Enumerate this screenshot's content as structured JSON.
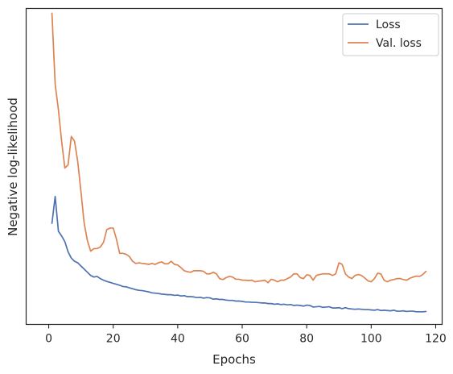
{
  "chart_data": {
    "type": "line",
    "xlabel": "Epochs",
    "ylabel": "Negative log-likelihood",
    "xlim": [
      -7,
      122
    ],
    "ylim": [
      0,
      1
    ],
    "xticks": [
      0,
      20,
      40,
      60,
      80,
      100,
      120
    ],
    "y_tick_labels_shown": false,
    "grid": false,
    "legend": {
      "placement": "top-right"
    },
    "x": [
      1,
      2,
      3,
      4,
      5,
      6,
      7,
      8,
      9,
      10,
      11,
      12,
      13,
      14,
      15,
      16,
      17,
      18,
      19,
      20,
      21,
      22,
      23,
      24,
      25,
      26,
      27,
      28,
      29,
      30,
      31,
      32,
      33,
      34,
      35,
      36,
      37,
      38,
      39,
      40,
      41,
      42,
      43,
      44,
      45,
      46,
      47,
      48,
      49,
      50,
      51,
      52,
      53,
      54,
      55,
      56,
      57,
      58,
      59,
      60,
      61,
      62,
      63,
      64,
      65,
      66,
      67,
      68,
      69,
      70,
      71,
      72,
      73,
      74,
      75,
      76,
      77,
      78,
      79,
      80,
      81,
      82,
      83,
      84,
      85,
      86,
      87,
      88,
      89,
      90,
      91,
      92,
      93,
      94,
      95,
      96,
      97,
      98,
      99,
      100,
      101,
      102,
      103,
      104,
      105,
      106,
      107,
      108,
      109,
      110,
      111,
      112,
      113,
      114,
      115,
      116,
      117
    ],
    "series": [
      {
        "name": "Loss",
        "color": "#4c72b0",
        "values": [
          0.32,
          0.405,
          0.295,
          0.28,
          0.262,
          0.23,
          0.21,
          0.2,
          0.195,
          0.185,
          0.175,
          0.165,
          0.155,
          0.15,
          0.152,
          0.145,
          0.14,
          0.136,
          0.133,
          0.13,
          0.127,
          0.124,
          0.12,
          0.119,
          0.116,
          0.113,
          0.11,
          0.108,
          0.107,
          0.105,
          0.103,
          0.1,
          0.099,
          0.098,
          0.096,
          0.095,
          0.094,
          0.094,
          0.092,
          0.093,
          0.09,
          0.091,
          0.088,
          0.088,
          0.087,
          0.085,
          0.086,
          0.083,
          0.085,
          0.084,
          0.08,
          0.081,
          0.079,
          0.079,
          0.077,
          0.076,
          0.076,
          0.074,
          0.074,
          0.073,
          0.071,
          0.071,
          0.07,
          0.07,
          0.069,
          0.068,
          0.068,
          0.066,
          0.066,
          0.064,
          0.065,
          0.063,
          0.064,
          0.062,
          0.063,
          0.06,
          0.061,
          0.06,
          0.058,
          0.061,
          0.06,
          0.055,
          0.056,
          0.057,
          0.054,
          0.055,
          0.056,
          0.052,
          0.052,
          0.053,
          0.05,
          0.053,
          0.05,
          0.049,
          0.048,
          0.049,
          0.048,
          0.047,
          0.047,
          0.046,
          0.045,
          0.047,
          0.044,
          0.045,
          0.044,
          0.043,
          0.045,
          0.042,
          0.042,
          0.043,
          0.041,
          0.042,
          0.042,
          0.04,
          0.04,
          0.04,
          0.041
        ]
      },
      {
        "name": "Val. loss",
        "color": "#dd8452",
        "values": [
          0.985,
          0.76,
          0.68,
          0.58,
          0.495,
          0.505,
          0.595,
          0.58,
          0.515,
          0.42,
          0.32,
          0.265,
          0.232,
          0.24,
          0.24,
          0.245,
          0.26,
          0.3,
          0.305,
          0.305,
          0.27,
          0.225,
          0.225,
          0.222,
          0.215,
          0.2,
          0.193,
          0.195,
          0.193,
          0.192,
          0.19,
          0.193,
          0.19,
          0.195,
          0.198,
          0.192,
          0.192,
          0.2,
          0.19,
          0.188,
          0.18,
          0.17,
          0.167,
          0.165,
          0.17,
          0.17,
          0.17,
          0.168,
          0.16,
          0.16,
          0.165,
          0.16,
          0.145,
          0.142,
          0.148,
          0.152,
          0.15,
          0.143,
          0.143,
          0.14,
          0.14,
          0.139,
          0.14,
          0.135,
          0.137,
          0.138,
          0.14,
          0.132,
          0.143,
          0.14,
          0.135,
          0.14,
          0.14,
          0.145,
          0.15,
          0.16,
          0.16,
          0.148,
          0.145,
          0.157,
          0.155,
          0.14,
          0.155,
          0.158,
          0.16,
          0.16,
          0.16,
          0.155,
          0.16,
          0.195,
          0.19,
          0.16,
          0.15,
          0.145,
          0.155,
          0.158,
          0.155,
          0.147,
          0.138,
          0.135,
          0.145,
          0.162,
          0.16,
          0.14,
          0.135,
          0.14,
          0.142,
          0.145,
          0.145,
          0.142,
          0.14,
          0.146,
          0.15,
          0.153,
          0.152,
          0.158,
          0.168
        ]
      }
    ]
  }
}
